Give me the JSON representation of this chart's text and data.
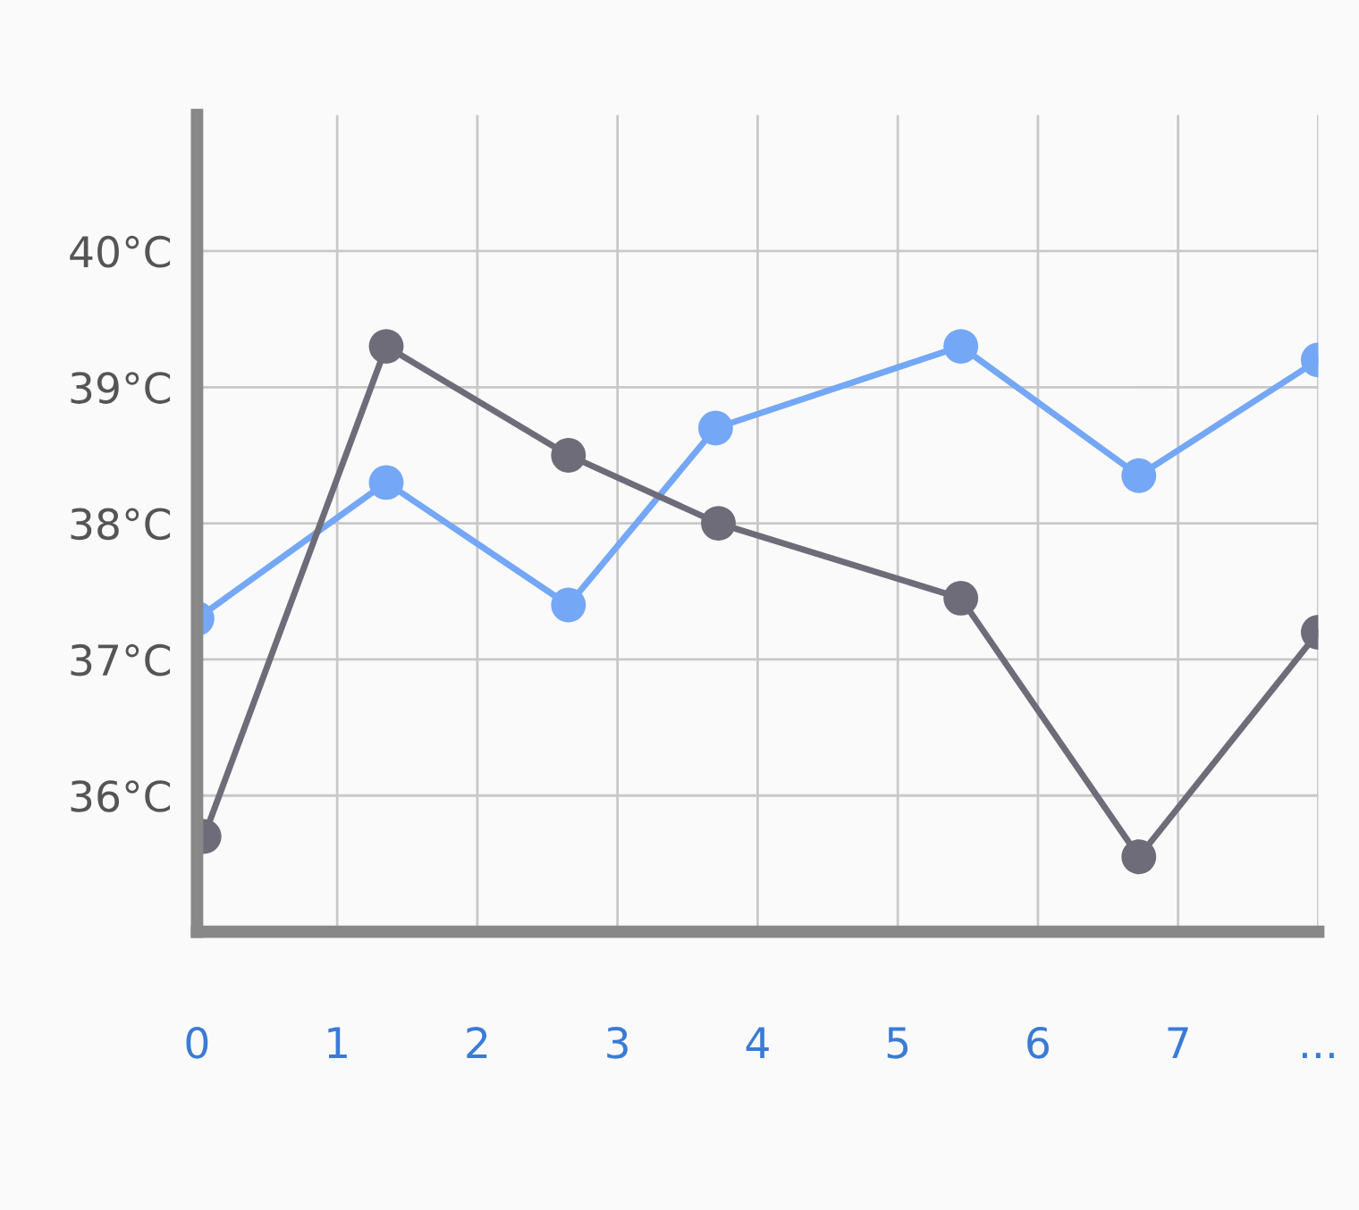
{
  "chart_data": {
    "type": "line",
    "xlim": [
      0,
      8
    ],
    "ylim": [
      35,
      41
    ],
    "xticks": [
      0,
      1,
      2,
      3,
      4,
      5,
      6,
      7,
      {
        "value": 8,
        "label": "..."
      }
    ],
    "yticks": [
      {
        "value": 36,
        "label": "36°C"
      },
      {
        "value": 37,
        "label": "37°C"
      },
      {
        "value": 38,
        "label": "38°C"
      },
      {
        "value": 39,
        "label": "39°C"
      },
      {
        "value": 40,
        "label": "40°C"
      }
    ],
    "grid": true,
    "marker": "circle",
    "line_style": "solid",
    "legend": false,
    "series": [
      {
        "color": "#74a7f5",
        "x": [
          0,
          1.35,
          2.65,
          3.7,
          5.45,
          6.72,
          8
        ],
        "values": [
          37.3,
          38.3,
          37.4,
          38.7,
          39.3,
          38.35,
          39.2
        ]
      },
      {
        "color": "#6e6c78",
        "x": [
          0.05,
          1.35,
          2.65,
          3.72,
          5.45,
          6.72,
          8
        ],
        "values": [
          35.7,
          39.3,
          38.5,
          38.0,
          37.45,
          35.55,
          37.2
        ]
      }
    ]
  }
}
